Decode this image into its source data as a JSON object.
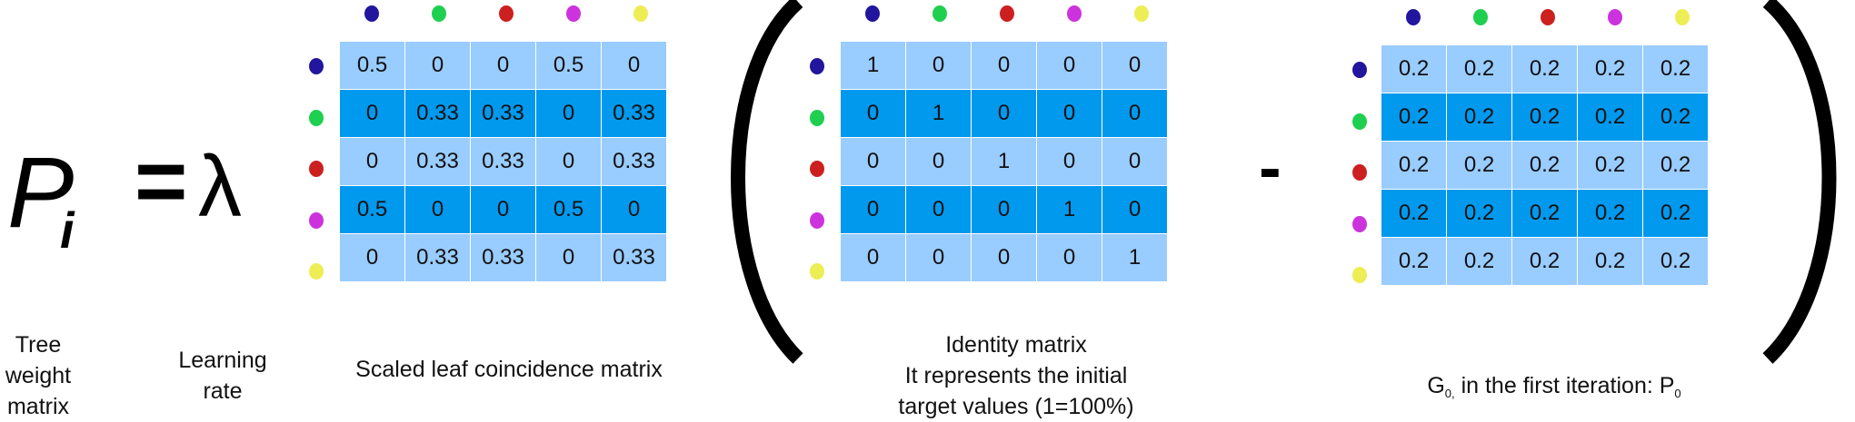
{
  "equation": {
    "lhs_symbol": "P",
    "lhs_subscript": "i",
    "equals": "=",
    "lambda": "λ",
    "minus": "-"
  },
  "labels": {
    "tree_weight": [
      "Tree",
      "weight",
      "matrix"
    ],
    "learning_rate": [
      "Learning",
      "rate"
    ],
    "scaled_leaf": "Scaled leaf coincidence matrix",
    "identity": [
      "Identity matrix",
      "It represents the initial",
      "target values (1=100%)"
    ],
    "g0_prefix": "G",
    "g0_sub": "0,",
    "g0_middle": " in the first iteration: P",
    "g0_p_sub": "0"
  },
  "dot_colors": [
    "#22169e",
    "#1fcf50",
    "#cc2020",
    "#cc33dd",
    "#eded55"
  ],
  "matrices": {
    "scaled_leaf": [
      [
        "0.5",
        "0",
        "0",
        "0.5",
        "0"
      ],
      [
        "0",
        "0.33",
        "0.33",
        "0",
        "0.33"
      ],
      [
        "0",
        "0.33",
        "0.33",
        "0",
        "0.33"
      ],
      [
        "0.5",
        "0",
        "0",
        "0.5",
        "0"
      ],
      [
        "0",
        "0.33",
        "0.33",
        "0",
        "0.33"
      ]
    ],
    "identity": [
      [
        "1",
        "0",
        "0",
        "0",
        "0"
      ],
      [
        "0",
        "1",
        "0",
        "0",
        "0"
      ],
      [
        "0",
        "0",
        "1",
        "0",
        "0"
      ],
      [
        "0",
        "0",
        "0",
        "1",
        "0"
      ],
      [
        "0",
        "0",
        "0",
        "0",
        "1"
      ]
    ],
    "g0": [
      [
        "0.2",
        "0.2",
        "0.2",
        "0.2",
        "0.2"
      ],
      [
        "0.2",
        "0.2",
        "0.2",
        "0.2",
        "0.2"
      ],
      [
        "0.2",
        "0.2",
        "0.2",
        "0.2",
        "0.2"
      ],
      [
        "0.2",
        "0.2",
        "0.2",
        "0.2",
        "0.2"
      ],
      [
        "0.2",
        "0.2",
        "0.2",
        "0.2",
        "0.2"
      ]
    ]
  }
}
